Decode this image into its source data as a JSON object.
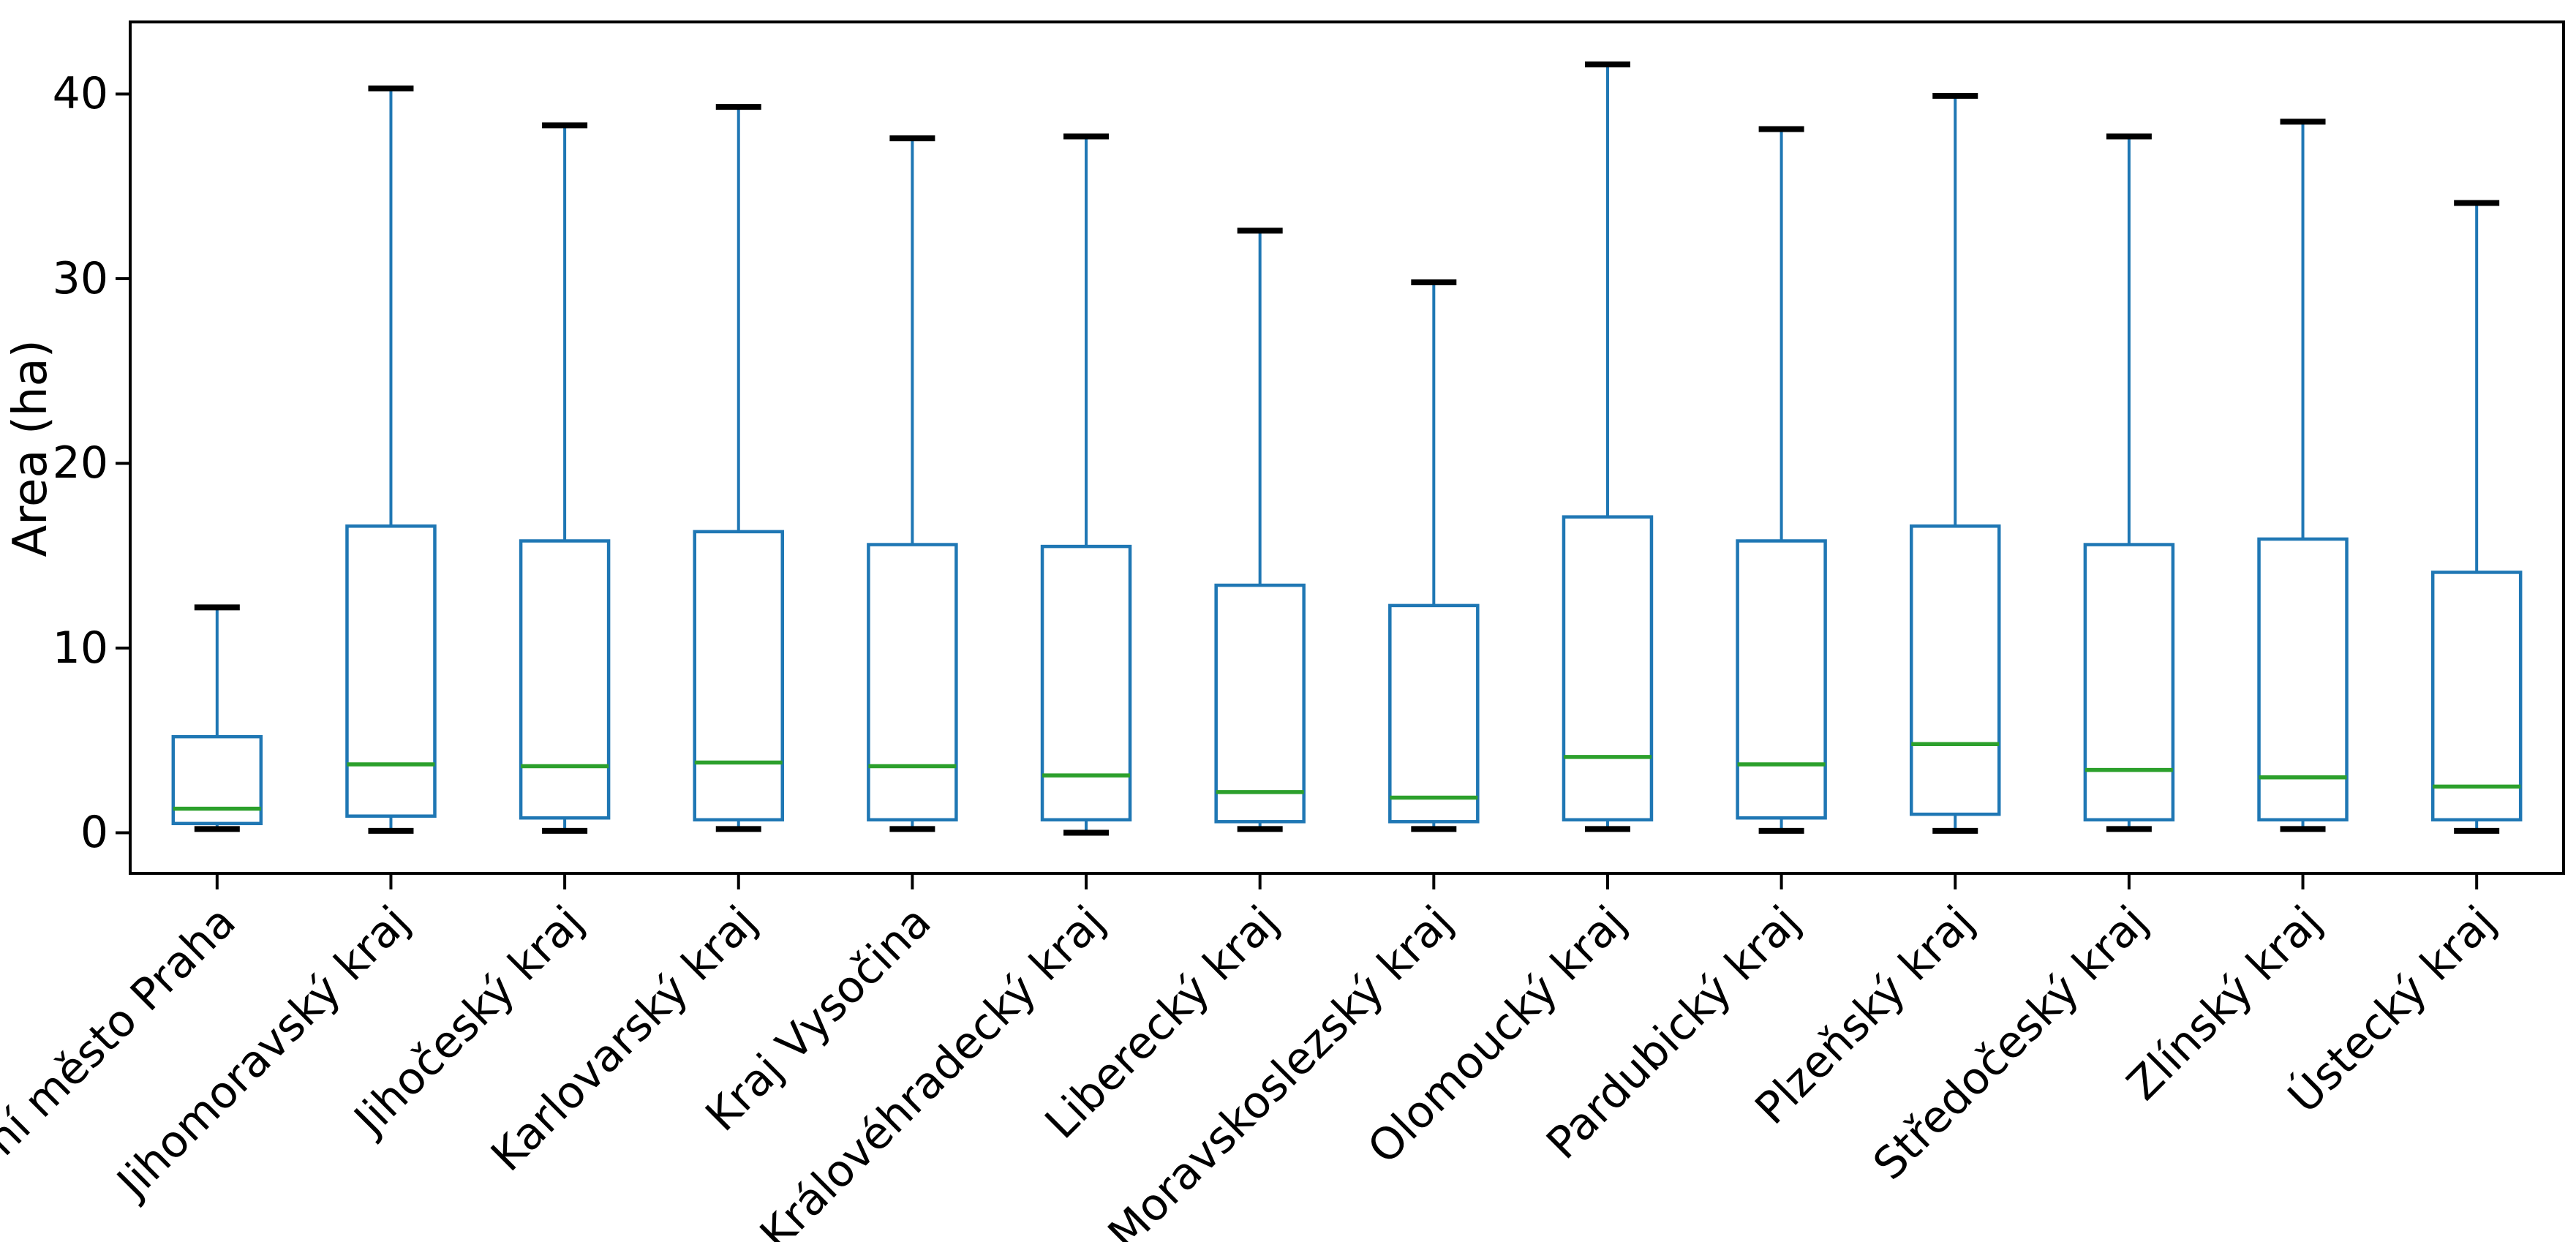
{
  "figure": {
    "background": "#ffffff",
    "spine_color": "#000000",
    "tick_color": "#000000"
  },
  "chart_data": {
    "type": "boxplot",
    "title": "",
    "xlabel": "",
    "ylabel": "Area (ha)",
    "ylim": [
      -2.2,
      43.9
    ],
    "yticks": [
      0,
      10,
      20,
      30,
      40
    ],
    "grid": false,
    "legend": "none",
    "box_color": "#1f77b4",
    "whisker_color": "#1f77b4",
    "median_color": "#2ca02c",
    "cap_color": "#000000",
    "categories": [
      "Hlavní město Praha",
      "Jihomoravský kraj",
      "Jihočeský kraj",
      "Karlovarský kraj",
      "Kraj Vysočina",
      "Královéhradecký kraj",
      "Liberecký kraj",
      "Moravskoslezský kraj",
      "Olomoucký kraj",
      "Pardubický kraj",
      "Plzeňský kraj",
      "Středočeský kraj",
      "Zlínský kraj",
      "Ústecký kraj"
    ],
    "series": [
      {
        "label": "Hlavní město Praha",
        "whislo": 0.2,
        "q1": 0.5,
        "med": 1.3,
        "q3": 5.2,
        "whishi": 12.2
      },
      {
        "label": "Jihomoravský kraj",
        "whislo": 0.1,
        "q1": 0.9,
        "med": 3.7,
        "q3": 16.6,
        "whishi": 40.3
      },
      {
        "label": "Jihočeský kraj",
        "whislo": 0.1,
        "q1": 0.8,
        "med": 3.6,
        "q3": 15.8,
        "whishi": 38.3
      },
      {
        "label": "Karlovarský kraj",
        "whislo": 0.2,
        "q1": 0.7,
        "med": 3.8,
        "q3": 16.3,
        "whishi": 39.3
      },
      {
        "label": "Kraj Vysočina",
        "whislo": 0.2,
        "q1": 0.7,
        "med": 3.6,
        "q3": 15.6,
        "whishi": 37.6
      },
      {
        "label": "Královéhradecký kraj",
        "whislo": 0.0,
        "q1": 0.7,
        "med": 3.1,
        "q3": 15.5,
        "whishi": 37.7
      },
      {
        "label": "Liberecký kraj",
        "whislo": 0.2,
        "q1": 0.6,
        "med": 2.2,
        "q3": 13.4,
        "whishi": 32.6
      },
      {
        "label": "Moravskoslezský kraj",
        "whislo": 0.2,
        "q1": 0.6,
        "med": 1.9,
        "q3": 12.3,
        "whishi": 29.8
      },
      {
        "label": "Olomoucký kraj",
        "whislo": 0.2,
        "q1": 0.7,
        "med": 4.1,
        "q3": 17.1,
        "whishi": 41.6
      },
      {
        "label": "Pardubický kraj",
        "whislo": 0.1,
        "q1": 0.8,
        "med": 3.7,
        "q3": 15.8,
        "whishi": 38.1
      },
      {
        "label": "Plzeňský kraj",
        "whislo": 0.1,
        "q1": 1.0,
        "med": 4.8,
        "q3": 16.6,
        "whishi": 39.9
      },
      {
        "label": "Středočeský kraj",
        "whislo": 0.2,
        "q1": 0.7,
        "med": 3.4,
        "q3": 15.6,
        "whishi": 37.7
      },
      {
        "label": "Zlínský kraj",
        "whislo": 0.2,
        "q1": 0.7,
        "med": 3.0,
        "q3": 15.9,
        "whishi": 38.5
      },
      {
        "label": "Ústecký kraj",
        "whislo": 0.1,
        "q1": 0.7,
        "med": 2.5,
        "q3": 14.1,
        "whishi": 34.1
      }
    ]
  }
}
